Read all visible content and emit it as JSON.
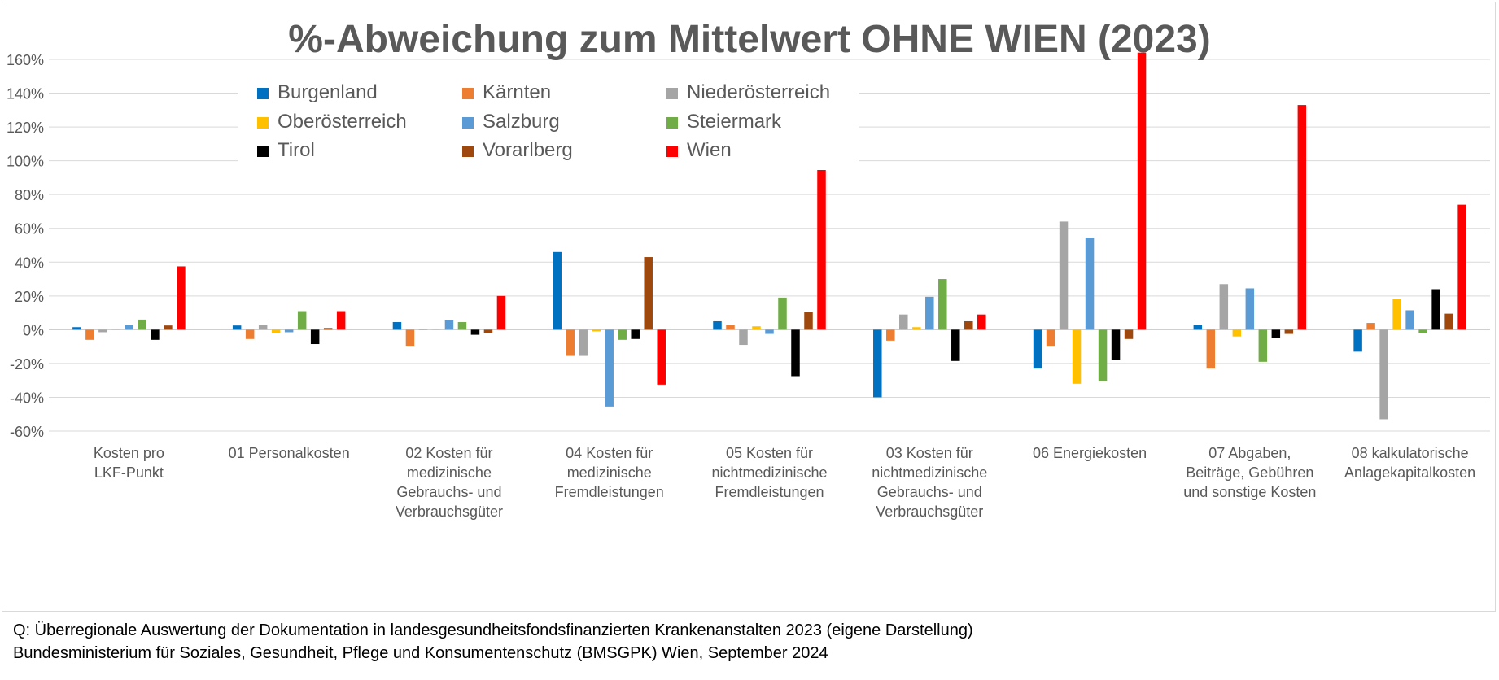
{
  "chart_data": {
    "type": "bar",
    "title": "%-Abweichung zum Mittelwert OHNE WIEN  (2023)",
    "xlabel": "",
    "ylabel": "",
    "ylim": [
      -60,
      160
    ],
    "yticks": [
      160,
      140,
      120,
      100,
      80,
      60,
      40,
      20,
      0,
      -20,
      -40,
      -60
    ],
    "ytick_labels": [
      "160%",
      "140%",
      "120%",
      "100%",
      "80%",
      "60%",
      "40%",
      "20%",
      "0%",
      "-20%",
      "-40%",
      "-60%"
    ],
    "grid": true,
    "legend_position": "top",
    "categories": [
      [
        "Kosten pro",
        "LKF-Punkt"
      ],
      [
        "01 Personalkosten"
      ],
      [
        "02 Kosten für",
        "medizinische",
        "Gebrauchs- und",
        "Verbrauchsgüter"
      ],
      [
        "04 Kosten für",
        "medizinische",
        "Fremdleistungen"
      ],
      [
        "05 Kosten für",
        "nichtmedizinische",
        "Fremdleistungen"
      ],
      [
        "03 Kosten für",
        "nichtmedizinische",
        "Gebrauchs- und",
        "Verbrauchsgüter"
      ],
      [
        "06 Energiekosten"
      ],
      [
        "07 Abgaben,",
        "Beiträge, Gebühren",
        "und sonstige Kosten"
      ],
      [
        "08 kalkulatorische",
        "Anlagekapitalkosten"
      ]
    ],
    "series": [
      {
        "name": "Burgenland",
        "color": "#0070C0",
        "values": [
          1.5,
          2.5,
          4.5,
          46,
          5,
          -40,
          -23,
          3,
          -13
        ]
      },
      {
        "name": "Kärnten",
        "color": "#ED7D31",
        "values": [
          -6,
          -5.5,
          -9.5,
          -15.5,
          3,
          -6.5,
          -9.5,
          -23,
          4
        ]
      },
      {
        "name": "Niederösterreich",
        "color": "#A5A5A5",
        "values": [
          -1.5,
          3,
          0,
          -15.5,
          -9,
          9,
          64,
          27,
          -53
        ]
      },
      {
        "name": "Oberösterreich",
        "color": "#FFC000",
        "values": [
          0,
          -2,
          0,
          -1,
          2,
          1.5,
          -32,
          -4,
          18
        ]
      },
      {
        "name": "Salzburg",
        "color": "#5B9BD5",
        "values": [
          3,
          -1.5,
          5.5,
          -45.5,
          -2.5,
          19.5,
          54.5,
          24.5,
          11.5
        ]
      },
      {
        "name": "Steiermark",
        "color": "#70AD47",
        "values": [
          6,
          11,
          4.5,
          -6,
          19,
          30,
          -30.5,
          -19,
          -2
        ]
      },
      {
        "name": "Tirol",
        "color": "#000000",
        "values": [
          -6,
          -8.5,
          -3,
          -5.5,
          -27.5,
          -18.5,
          -18,
          -5,
          24
        ]
      },
      {
        "name": "Vorarlberg",
        "color": "#9E480E",
        "values": [
          2.5,
          1,
          -2,
          43,
          10.5,
          5,
          -5.5,
          -2.5,
          9.5
        ]
      },
      {
        "name": "Wien",
        "color": "#FF0000",
        "values": [
          37.5,
          11,
          20,
          -32.5,
          98,
          9,
          164,
          133,
          74
        ]
      }
    ]
  },
  "source": {
    "line1": "Q: Überregionale Auswertung der Dokumentation in landesgesundheitsfondsfinanzierten  Krankenanstalten 2023  (eigene Darstellung)",
    "line2": "Bundesministerium für Soziales, Gesundheit, Pflege und Konsumentenschutz (BMSGPK) Wien, September 2024"
  }
}
